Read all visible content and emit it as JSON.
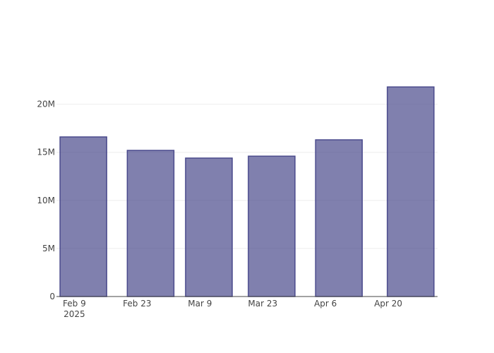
{
  "chart_data": {
    "type": "bar",
    "x": [
      "2025-02-11",
      "2025-02-26",
      "2025-03-11",
      "2025-03-25",
      "2025-04-09",
      "2025-04-25"
    ],
    "values": [
      16600000,
      15200000,
      14400000,
      14600000,
      16300000,
      21800000
    ],
    "color": "#4a4a8c",
    "xlim": [
      "2025-02-05",
      "2025-05-01"
    ],
    "xticks": [
      {
        "value": "2025-02-09",
        "label": "Feb 9\n2025"
      },
      {
        "value": "2025-02-23",
        "label": "Feb 23"
      },
      {
        "value": "2025-03-09",
        "label": "Mar 9"
      },
      {
        "value": "2025-03-23",
        "label": "Mar 23"
      },
      {
        "value": "2025-04-06",
        "label": "Apr 6"
      },
      {
        "value": "2025-04-20",
        "label": "Apr 20"
      }
    ],
    "ylim": [
      0,
      23500000
    ],
    "yticks": [
      0,
      {
        "value": 5000000,
        "label": "5M"
      },
      {
        "value": 10000000,
        "label": "10M"
      },
      {
        "value": 15000000,
        "label": "15M"
      },
      {
        "value": 20000000,
        "label": "20M"
      }
    ],
    "grid": true
  }
}
